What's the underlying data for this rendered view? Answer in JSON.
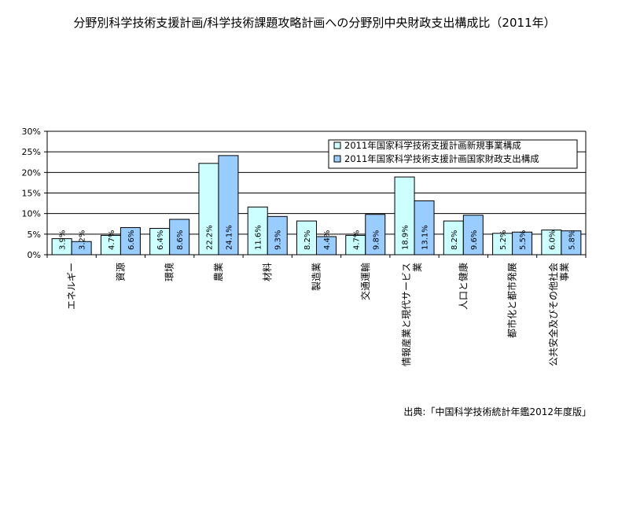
{
  "chart_data": {
    "type": "bar",
    "title": "分野別科学技術支援計画/科学技術課題攻略計画への分野別中央財政支出構成比（2011年）",
    "categories": [
      "エネルギー",
      "資源",
      "環境",
      "農業",
      "材料",
      "製造業",
      "交通運輸",
      "情報産業と現代サービス業",
      "人口と健康",
      "都市化と都市発展",
      "公共安全及びその他社会事業"
    ],
    "series": [
      {
        "name": "2011年国家科学技術支援計画新規事業構成",
        "color": "#ccffff",
        "values": [
          3.9,
          4.7,
          6.4,
          22.2,
          11.6,
          8.2,
          4.7,
          18.9,
          8.2,
          5.2,
          6.0
        ],
        "labels": [
          "3.9%",
          "4.7%",
          "6.4%",
          "22.2%",
          "11.6%",
          "8.2%",
          "4.7%",
          "18.9%",
          "8.2%",
          "5.2%",
          "6.0%"
        ]
      },
      {
        "name": "2011年国家科学技術支援計画国家財政支出構成",
        "color": "#99ccff",
        "values": [
          3.2,
          6.6,
          8.6,
          24.1,
          9.3,
          4.4,
          9.8,
          13.1,
          9.6,
          5.5,
          5.8
        ],
        "labels": [
          "3.2%",
          "6.6%",
          "8.6%",
          "24.1%",
          "9.3%",
          "4.4%",
          "9.8%",
          "13.1%",
          "9.6%",
          "5.5%",
          "5.8%"
        ]
      }
    ],
    "ylim": [
      0,
      30
    ],
    "yticks": [
      "0%",
      "5%",
      "10%",
      "15%",
      "20%",
      "25%",
      "30%"
    ],
    "grid": true,
    "legend_position": "top-right"
  },
  "source": "出典:「中国科学技術統計年鑑2012年度版」"
}
